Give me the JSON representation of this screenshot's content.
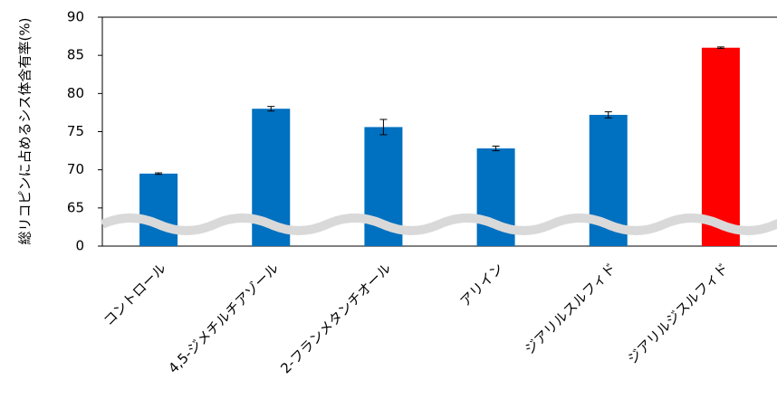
{
  "chart_data": {
    "type": "bar",
    "y_label": "総リコピンに占めるシス体含有率(%)",
    "categories": [
      "コントロール",
      "4,5-ジメチルチアゾール",
      "2-フランメタンチオール",
      "アリイン",
      "ジアリルスルフィド",
      "ジアリルジスルフィド"
    ],
    "values": [
      69.5,
      78.0,
      75.6,
      72.8,
      77.2,
      86.0
    ],
    "errors": [
      0.1,
      0.3,
      1.0,
      0.3,
      0.4,
      0.1
    ],
    "colors": [
      "#0070c0",
      "#0070c0",
      "#0070c0",
      "#0070c0",
      "#0070c0",
      "#ff0000"
    ],
    "ylim": [
      0,
      90
    ],
    "yticks": [
      0,
      65,
      70,
      75,
      80,
      85,
      90
    ],
    "broken_axis": true
  }
}
